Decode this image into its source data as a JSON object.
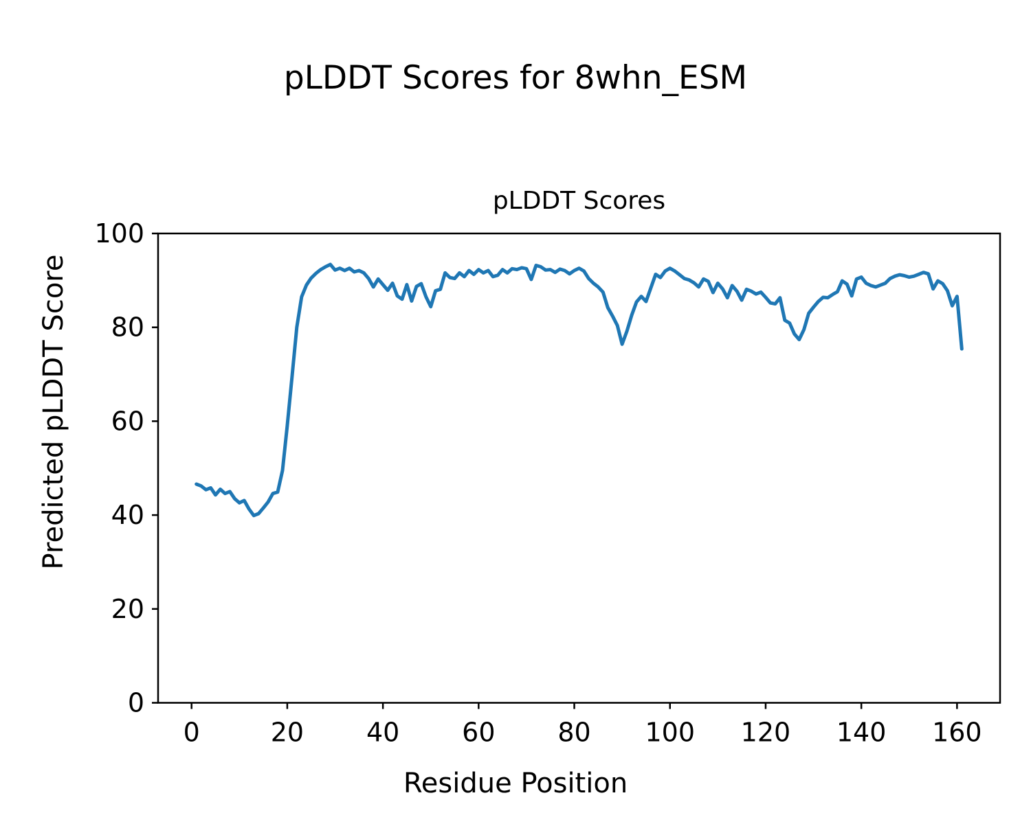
{
  "chart_data": {
    "type": "line",
    "title": "pLDDT Scores for 8whn_ESM",
    "axes_title": "pLDDT Scores",
    "xlabel": "Residue Position",
    "ylabel": "Predicted pLDDT Score",
    "line_color": "#1f77b4",
    "axis_color": "#000000",
    "background_color": "#ffffff",
    "grid": false,
    "legend_position": null,
    "x_start": 1,
    "xlim": [
      -7,
      169
    ],
    "ylim": [
      0,
      100
    ],
    "xticks": [
      0,
      20,
      40,
      60,
      80,
      100,
      120,
      140,
      160
    ],
    "yticks": [
      0,
      20,
      40,
      60,
      80,
      100
    ],
    "values": [
      46.6,
      46.2,
      45.4,
      45.8,
      44.3,
      45.5,
      44.6,
      45.0,
      43.5,
      42.6,
      43.1,
      41.3,
      39.9,
      40.3,
      41.5,
      42.8,
      44.6,
      44.9,
      49.5,
      59.0,
      69.5,
      80.0,
      86.5,
      89.0,
      90.5,
      91.5,
      92.3,
      92.9,
      93.4,
      92.2,
      92.6,
      92.1,
      92.6,
      91.8,
      92.1,
      91.6,
      90.4,
      88.6,
      90.3,
      89.1,
      87.9,
      89.4,
      86.7,
      86.0,
      89.1,
      85.6,
      88.7,
      89.3,
      86.5,
      84.4,
      87.8,
      88.1,
      91.6,
      90.6,
      90.4,
      91.6,
      90.8,
      92.1,
      91.3,
      92.3,
      91.6,
      92.1,
      90.8,
      91.1,
      92.3,
      91.6,
      92.5,
      92.3,
      92.7,
      92.5,
      90.2,
      93.2,
      92.9,
      92.2,
      92.3,
      91.7,
      92.4,
      92.1,
      91.4,
      92.1,
      92.6,
      92.0,
      90.4,
      89.4,
      88.6,
      87.5,
      84.2,
      82.4,
      80.4,
      76.4,
      79.2,
      82.6,
      85.4,
      86.6,
      85.5,
      88.4,
      91.3,
      90.6,
      92.0,
      92.6,
      92.0,
      91.2,
      90.4,
      90.1,
      89.5,
      88.6,
      90.3,
      89.8,
      87.4,
      89.4,
      88.2,
      86.3,
      88.9,
      87.7,
      85.8,
      88.1,
      87.7,
      87.1,
      87.5,
      86.4,
      85.2,
      85.0,
      86.3,
      81.5,
      80.9,
      78.6,
      77.4,
      79.5,
      83.0,
      84.3,
      85.5,
      86.4,
      86.3,
      87.0,
      87.6,
      89.9,
      89.2,
      86.7,
      90.3,
      90.7,
      89.4,
      88.9,
      88.6,
      89.0,
      89.4,
      90.4,
      90.9,
      91.2,
      91.0,
      90.7,
      90.9,
      91.3,
      91.7,
      91.4,
      88.2,
      89.9,
      89.3,
      87.8,
      84.6,
      86.6,
      75.4
    ]
  }
}
